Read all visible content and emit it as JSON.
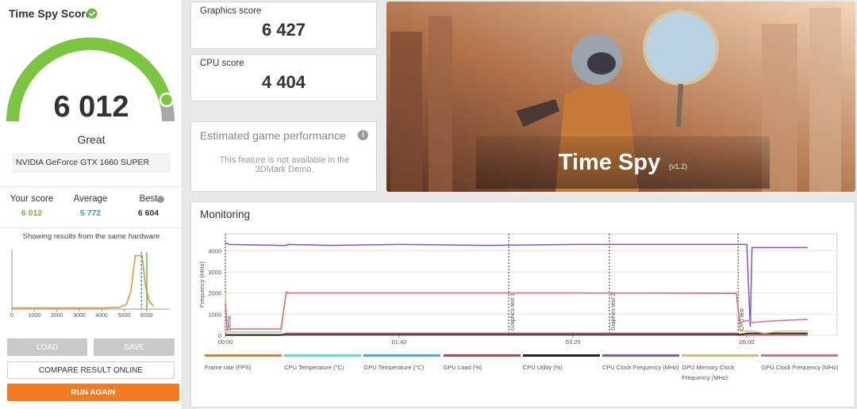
{
  "score_panel": {
    "title": "Time Spy Score",
    "score": "6 012",
    "rating": "Great",
    "gpu": "NVIDIA GeForce GTX 1660 SUPER",
    "comparison": [
      {
        "label": "Your score",
        "value": "6 012",
        "color": "#6cbf3c"
      },
      {
        "label": "Average",
        "value": "5 772",
        "color": "#2aa7df"
      },
      {
        "label": "Best",
        "value": "6 604",
        "color": "#333333"
      }
    ],
    "distribution_caption": "Showing results from the same hardware",
    "distribution": {
      "type": "line",
      "color": "#f08a2a",
      "x": [
        0,
        1000,
        2000,
        3000,
        4000,
        4800,
        5100,
        5300,
        5500,
        5800,
        5950,
        6100,
        6300
      ],
      "values": [
        2,
        2,
        2,
        2,
        2,
        3,
        8,
        30,
        90,
        90,
        40,
        15,
        5
      ],
      "xlim": [
        0,
        7000
      ],
      "xticks": [
        0,
        1000,
        2000,
        3000,
        4000,
        5000,
        6000
      ],
      "ylim": [
        0,
        100
      ]
    },
    "buttons": {
      "load": "LOAD",
      "save": "SAVE",
      "compare": "COMPARE RESULT ONLINE",
      "run": "RUN AGAIN"
    }
  },
  "subscores": [
    {
      "label": "Graphics score",
      "value": "6 427"
    },
    {
      "label": "CPU score",
      "value": "4 404"
    }
  ],
  "game_performance": {
    "title": "Estimated game performance",
    "message": "This feature is not available in the 3DMark Demo."
  },
  "banner": {
    "title": "Time Spy",
    "version": "(v1.2)"
  },
  "monitoring": {
    "title": "Monitoring",
    "chart": {
      "type": "line",
      "ylabel": "Frequency (MHz)",
      "x": [
        0,
        1,
        2,
        32,
        35,
        36,
        60,
        100,
        150,
        200,
        250,
        294,
        296,
        300,
        302,
        303,
        310,
        320,
        335
      ],
      "xlim": [
        0,
        352
      ],
      "xticks": [
        {
          "value": 0,
          "label": "00:00"
        },
        {
          "value": 100,
          "label": "01:40"
        },
        {
          "value": 200,
          "label": "03:20"
        },
        {
          "value": 300,
          "label": "05:00"
        }
      ],
      "ylim": [
        0,
        4800
      ],
      "yticks": [
        0,
        1000,
        2000,
        3000,
        4000
      ],
      "grid": true,
      "markers": [
        {
          "x": 0,
          "label": "Demo"
        },
        {
          "x": 163,
          "label": "Graphics test 1"
        },
        {
          "x": 221,
          "label": "Graphics test 2"
        },
        {
          "x": 295,
          "label": "CPU test"
        }
      ],
      "series": [
        {
          "name": "Frame rate (FPS)",
          "color": "#e67e22",
          "values": [
            0,
            0,
            0,
            0,
            40,
            45,
            45,
            40,
            38,
            35,
            38,
            36,
            0,
            10,
            10,
            10,
            10,
            10,
            10
          ]
        },
        {
          "name": "CPU Temperature (°C)",
          "color": "#4de8c9",
          "values": [
            40,
            40,
            41,
            42,
            45,
            48,
            50,
            52,
            53,
            54,
            55,
            55,
            55,
            60,
            65,
            66,
            67,
            68,
            68
          ]
        },
        {
          "name": "GPU Temperature (°C)",
          "color": "#36b3e0",
          "values": [
            35,
            35,
            36,
            38,
            45,
            50,
            58,
            62,
            64,
            65,
            66,
            66,
            60,
            55,
            52,
            50,
            48,
            47,
            46
          ]
        },
        {
          "name": "GPU Load (%)",
          "color": "#d93a3a",
          "values": [
            5,
            3,
            3,
            3,
            99,
            99,
            99,
            99,
            99,
            99,
            99,
            99,
            10,
            20,
            20,
            20,
            20,
            20,
            20
          ]
        },
        {
          "name": "CPU Utility (%)",
          "color": "#222222",
          "values": [
            10,
            8,
            8,
            8,
            20,
            20,
            18,
            18,
            18,
            18,
            18,
            18,
            20,
            100,
            100,
            100,
            100,
            100,
            100
          ]
        },
        {
          "name": "CPU Clock Frequency (MHz)",
          "color": "#8e4fc5",
          "values": [
            4350,
            4350,
            4300,
            4250,
            4250,
            4300,
            4250,
            4300,
            4250,
            4300,
            4300,
            4300,
            4300,
            4300,
            400,
            4150,
            4150,
            4150,
            4150
          ]
        },
        {
          "name": "GPU Memory Clock Frequency (MHz)",
          "color": "#e8b86d",
          "values": [
            2000,
            150,
            150,
            150,
            2000,
            2000,
            2000,
            2000,
            2000,
            2000,
            2000,
            2000,
            200,
            200,
            200,
            200,
            100,
            200,
            200
          ]
        },
        {
          "name": "GPU Clock Frequency (MHz)",
          "color": "#e06b8a",
          "values": [
            1500,
            300,
            300,
            300,
            2050,
            2000,
            2000,
            2000,
            2000,
            2000,
            1990,
            1980,
            600,
            700,
            650,
            600,
            650,
            700,
            750
          ]
        }
      ]
    }
  }
}
